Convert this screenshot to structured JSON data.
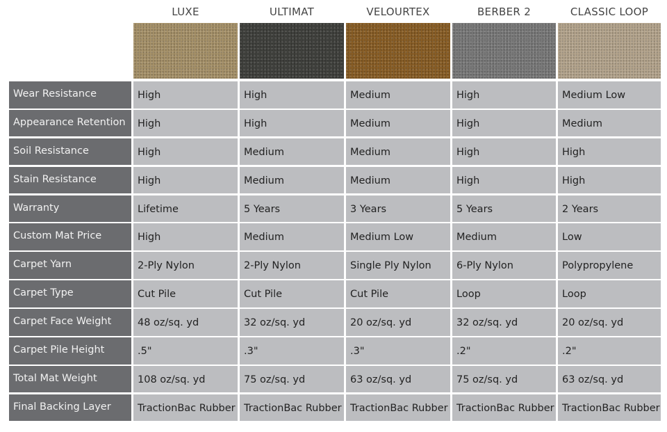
{
  "products": [
    {
      "name": "LUXE",
      "swatch": "#a8936a"
    },
    {
      "name": "ULTIMAT",
      "swatch": "#3f403c"
    },
    {
      "name": "VELOURTEX",
      "swatch": "#8a5e25"
    },
    {
      "name": "BERBER 2",
      "swatch": "#7a7a7a"
    },
    {
      "name": "CLASSIC LOOP",
      "swatch": "#b6a68e"
    }
  ],
  "rows": [
    {
      "label": "Wear Resistance",
      "values": [
        "High",
        "High",
        "Medium",
        "High",
        "Medium Low"
      ]
    },
    {
      "label": "Appearance Retention",
      "values": [
        "High",
        "High",
        "Medium",
        "High",
        "Medium"
      ]
    },
    {
      "label": "Soil Resistance",
      "values": [
        "High",
        "Medium",
        "Medium",
        "High",
        "High"
      ]
    },
    {
      "label": "Stain Resistance",
      "values": [
        "High",
        "Medium",
        "Medium",
        "High",
        "High"
      ]
    },
    {
      "label": "Warranty",
      "values": [
        "Lifetime",
        "5 Years",
        "3 Years",
        "5 Years",
        "2 Years"
      ]
    },
    {
      "label": "Custom Mat Price",
      "values": [
        "High",
        "Medium",
        "Medium Low",
        "Medium",
        "Low"
      ]
    },
    {
      "label": "Carpet Yarn",
      "values": [
        "2-Ply Nylon",
        "2-Ply Nylon",
        "Single Ply Nylon",
        "6-Ply Nylon",
        "Polypropylene"
      ]
    },
    {
      "label": "Carpet Type",
      "values": [
        "Cut Pile",
        "Cut Pile",
        "Cut Pile",
        "Loop",
        "Loop"
      ]
    },
    {
      "label": "Carpet Face Weight",
      "values": [
        "48 oz/sq. yd",
        "32 oz/sq. yd",
        "20 oz/sq. yd",
        "32 oz/sq. yd",
        "20 oz/sq. yd"
      ]
    },
    {
      "label": "Carpet Pile Height",
      "values": [
        ".5\"",
        ".3\"",
        ".3\"",
        ".2\"",
        ".2\""
      ]
    },
    {
      "label": "Total Mat Weight",
      "values": [
        "108 oz/sq. yd",
        "75 oz/sq. yd",
        "63 oz/sq. yd",
        "75 oz/sq. yd",
        "63 oz/sq. yd"
      ]
    },
    {
      "label": "Final Backing Layer",
      "values": [
        "TractionBac Rubber",
        "TractionBac Rubber",
        "TractionBac Rubber",
        "TractionBac Rubber",
        "TractionBac Rubber"
      ]
    }
  ]
}
